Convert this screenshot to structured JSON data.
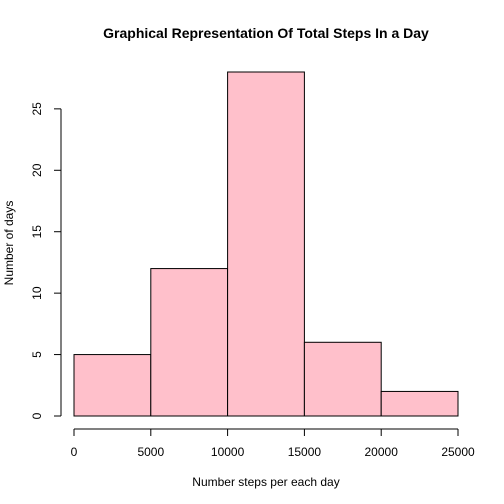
{
  "chart_data": {
    "type": "histogram",
    "title": "Graphical Representation Of Total Steps In a Day",
    "xlabel": "Number steps per each day",
    "ylabel": "Number of days",
    "bins": [
      {
        "from": 0,
        "to": 5000,
        "count": 5
      },
      {
        "from": 5000,
        "to": 10000,
        "count": 12
      },
      {
        "from": 10000,
        "to": 15000,
        "count": 28
      },
      {
        "from": 15000,
        "to": 20000,
        "count": 6
      },
      {
        "from": 20000,
        "to": 25000,
        "count": 2
      }
    ],
    "xlim": [
      0,
      25000
    ],
    "ylim": [
      0,
      28
    ],
    "xticks": [
      0,
      5000,
      10000,
      15000,
      20000,
      25000
    ],
    "yticks": [
      0,
      5,
      10,
      15,
      20,
      25
    ],
    "bar_color": "#FFC0CB",
    "border_color": "#000000",
    "grid": false,
    "legend": "none"
  }
}
